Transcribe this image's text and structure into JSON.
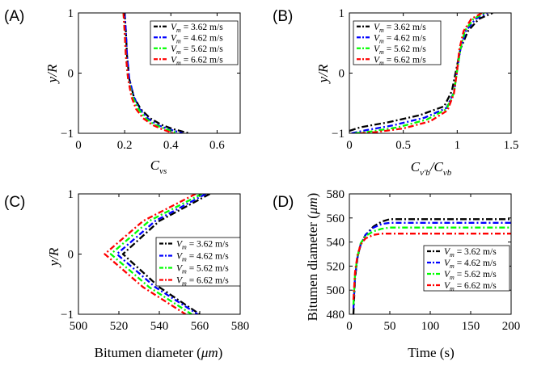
{
  "figure": {
    "legend_labels": [
      "3.62 m/s",
      "4.62 m/s",
      "5.62 m/s",
      "6.62 m/s"
    ],
    "legend_symbol": "V",
    "legend_subscript": "m",
    "legend_equals": " = "
  },
  "chart_data": [
    {
      "panel": "(A)",
      "type": "line",
      "xlabel": "C",
      "xlabel_subscript": "vs",
      "ylabel": "y/R",
      "xlim": [
        0,
        0.7
      ],
      "ylim": [
        -1,
        1
      ],
      "xticks": [
        0,
        0.2,
        0.4,
        0.6
      ],
      "yticks": [
        -1,
        0,
        1
      ],
      "xtick_labels": [
        "0",
        "0.2",
        "0.4",
        "0.6"
      ],
      "ytick_labels": [
        "-1",
        "0",
        "1"
      ],
      "legend_position": "top-right",
      "series": [
        {
          "name": "Vm = 3.62 m/s",
          "color": "#000000",
          "x": [
            0.2,
            0.205,
            0.21,
            0.22,
            0.24,
            0.27,
            0.31,
            0.36,
            0.41,
            0.48
          ],
          "y": [
            1,
            0.7,
            0.3,
            -0.1,
            -0.4,
            -0.6,
            -0.75,
            -0.86,
            -0.93,
            -1
          ]
        },
        {
          "name": "Vm = 4.62 m/s",
          "color": "#0000ff",
          "x": [
            0.2,
            0.205,
            0.21,
            0.22,
            0.24,
            0.265,
            0.3,
            0.34,
            0.39,
            0.45
          ],
          "y": [
            1,
            0.7,
            0.3,
            -0.1,
            -0.4,
            -0.6,
            -0.75,
            -0.86,
            -0.93,
            -1
          ]
        },
        {
          "name": "Vm = 5.62 m/s",
          "color": "#00ff00",
          "x": [
            0.195,
            0.2,
            0.205,
            0.215,
            0.235,
            0.26,
            0.29,
            0.33,
            0.38,
            0.43
          ],
          "y": [
            1,
            0.7,
            0.3,
            -0.1,
            -0.4,
            -0.6,
            -0.75,
            -0.86,
            -0.93,
            -1
          ]
        },
        {
          "name": "Vm = 6.62 m/s",
          "color": "#ff0000",
          "x": [
            0.195,
            0.2,
            0.205,
            0.215,
            0.23,
            0.25,
            0.28,
            0.32,
            0.36,
            0.41
          ],
          "y": [
            1,
            0.7,
            0.3,
            -0.1,
            -0.4,
            -0.6,
            -0.75,
            -0.86,
            -0.93,
            -1
          ]
        }
      ]
    },
    {
      "panel": "(B)",
      "type": "line",
      "xlabel": "C",
      "xlabel_subscript": "v'b",
      "xlabel_denominator": "C",
      "xlabel_denominator_subscript": "vb",
      "ylabel": "y/R",
      "xlim": [
        0,
        1.5
      ],
      "ylim": [
        -1,
        1
      ],
      "xticks": [
        0,
        0.5,
        1,
        1.5
      ],
      "yticks": [
        -1,
        0,
        1
      ],
      "xtick_labels": [
        "0",
        "0.5",
        "1",
        "1.5"
      ],
      "ytick_labels": [
        "-1",
        "0",
        "1"
      ],
      "legend_position": "top-left",
      "series": [
        {
          "name": "Vm = 3.62 m/s",
          "color": "#000000",
          "x": [
            0.0,
            0.1,
            0.35,
            0.65,
            0.88,
            0.95,
            0.99,
            1.03,
            1.1,
            1.2,
            1.33
          ],
          "y": [
            -0.96,
            -0.9,
            -0.82,
            -0.7,
            -0.55,
            -0.3,
            0.05,
            0.4,
            0.7,
            0.9,
            1
          ]
        },
        {
          "name": "Vm = 4.62 m/s",
          "color": "#0000ff",
          "x": [
            0.02,
            0.15,
            0.4,
            0.7,
            0.9,
            0.97,
            1.0,
            1.03,
            1.08,
            1.17,
            1.28
          ],
          "y": [
            -1,
            -0.95,
            -0.87,
            -0.74,
            -0.58,
            -0.32,
            0.05,
            0.4,
            0.7,
            0.9,
            1
          ]
        },
        {
          "name": "Vm = 5.62 m/s",
          "color": "#00ff00",
          "x": [
            0.05,
            0.2,
            0.45,
            0.72,
            0.9,
            0.97,
            1.0,
            1.03,
            1.07,
            1.15,
            1.25
          ],
          "y": [
            -1,
            -0.97,
            -0.9,
            -0.77,
            -0.6,
            -0.33,
            0.05,
            0.4,
            0.7,
            0.9,
            1
          ]
        },
        {
          "name": "Vm = 6.62 m/s",
          "color": "#ff0000",
          "x": [
            0.1,
            0.25,
            0.5,
            0.75,
            0.91,
            0.97,
            1.0,
            1.02,
            1.06,
            1.13,
            1.23
          ],
          "y": [
            -1,
            -0.98,
            -0.92,
            -0.8,
            -0.62,
            -0.34,
            0.05,
            0.4,
            0.7,
            0.9,
            1
          ]
        }
      ]
    },
    {
      "panel": "(C)",
      "type": "line",
      "xlabel": "Bitumen diameter (",
      "xlabel_unit": "μm",
      "xlabel_close": ")",
      "ylabel": "y/R",
      "xlim": [
        500,
        580
      ],
      "ylim": [
        -1,
        1
      ],
      "xticks": [
        500,
        520,
        540,
        560,
        580
      ],
      "yticks": [
        -1,
        0,
        1
      ],
      "xtick_labels": [
        "500",
        "520",
        "540",
        "560",
        "580"
      ],
      "ytick_labels": [
        "-1",
        "0",
        "1"
      ],
      "legend_position": "top-right",
      "series": [
        {
          "name": "Vm = 3.62 m/s",
          "color": "#000000",
          "x": [
            565,
            540,
            522,
            540,
            560
          ],
          "y": [
            1,
            0.55,
            0,
            -0.55,
            -1
          ]
        },
        {
          "name": "Vm = 4.62 m/s",
          "color": "#0000ff",
          "x": [
            563,
            538,
            519,
            538,
            559
          ],
          "y": [
            1,
            0.55,
            0,
            -0.55,
            -1
          ]
        },
        {
          "name": "Vm = 5.62 m/s",
          "color": "#00ff00",
          "x": [
            561,
            535,
            516,
            535,
            556
          ],
          "y": [
            1,
            0.55,
            0,
            -0.55,
            -1
          ]
        },
        {
          "name": "Vm = 6.62 m/s",
          "color": "#ff0000",
          "x": [
            558,
            532,
            513,
            532,
            553
          ],
          "y": [
            1,
            0.55,
            0,
            -0.55,
            -1
          ]
        }
      ]
    },
    {
      "panel": "(D)",
      "type": "line",
      "xlabel": "Time (s)",
      "ylabel": "Bitumen diameter (",
      "ylabel_unit": "μm",
      "ylabel_close": ")",
      "xlim": [
        0,
        200
      ],
      "ylim": [
        480,
        580
      ],
      "xticks": [
        0,
        50,
        100,
        150,
        200
      ],
      "yticks": [
        480,
        500,
        520,
        540,
        560,
        580
      ],
      "xtick_labels": [
        "0",
        "50",
        "100",
        "150",
        "200"
      ],
      "ytick_labels": [
        "480",
        "500",
        "520",
        "540",
        "560",
        "580"
      ],
      "legend_position": "center-right",
      "series": [
        {
          "name": "Vm = 3.62 m/s",
          "color": "#000000",
          "x": [
            5,
            7,
            10,
            14,
            20,
            30,
            40,
            50,
            200
          ],
          "y": [
            480,
            510,
            527,
            538,
            546,
            553,
            557,
            559,
            559
          ]
        },
        {
          "name": "Vm = 4.62 m/s",
          "color": "#0000ff",
          "x": [
            5,
            7,
            10,
            14,
            20,
            30,
            40,
            50,
            200
          ],
          "y": [
            485,
            511,
            527,
            538,
            546,
            552,
            555,
            556,
            556
          ]
        },
        {
          "name": "Vm = 5.62 m/s",
          "color": "#00ff00",
          "x": [
            5,
            7,
            10,
            14,
            20,
            30,
            40,
            50,
            200
          ],
          "y": [
            488,
            513,
            528,
            539,
            545,
            549,
            551,
            552,
            552
          ]
        },
        {
          "name": "Vm = 6.62 m/s",
          "color": "#ff0000",
          "x": [
            5,
            7,
            10,
            14,
            20,
            30,
            40,
            50,
            200
          ],
          "y": [
            492,
            515,
            529,
            538,
            543,
            546,
            547,
            547,
            547
          ]
        }
      ]
    }
  ]
}
